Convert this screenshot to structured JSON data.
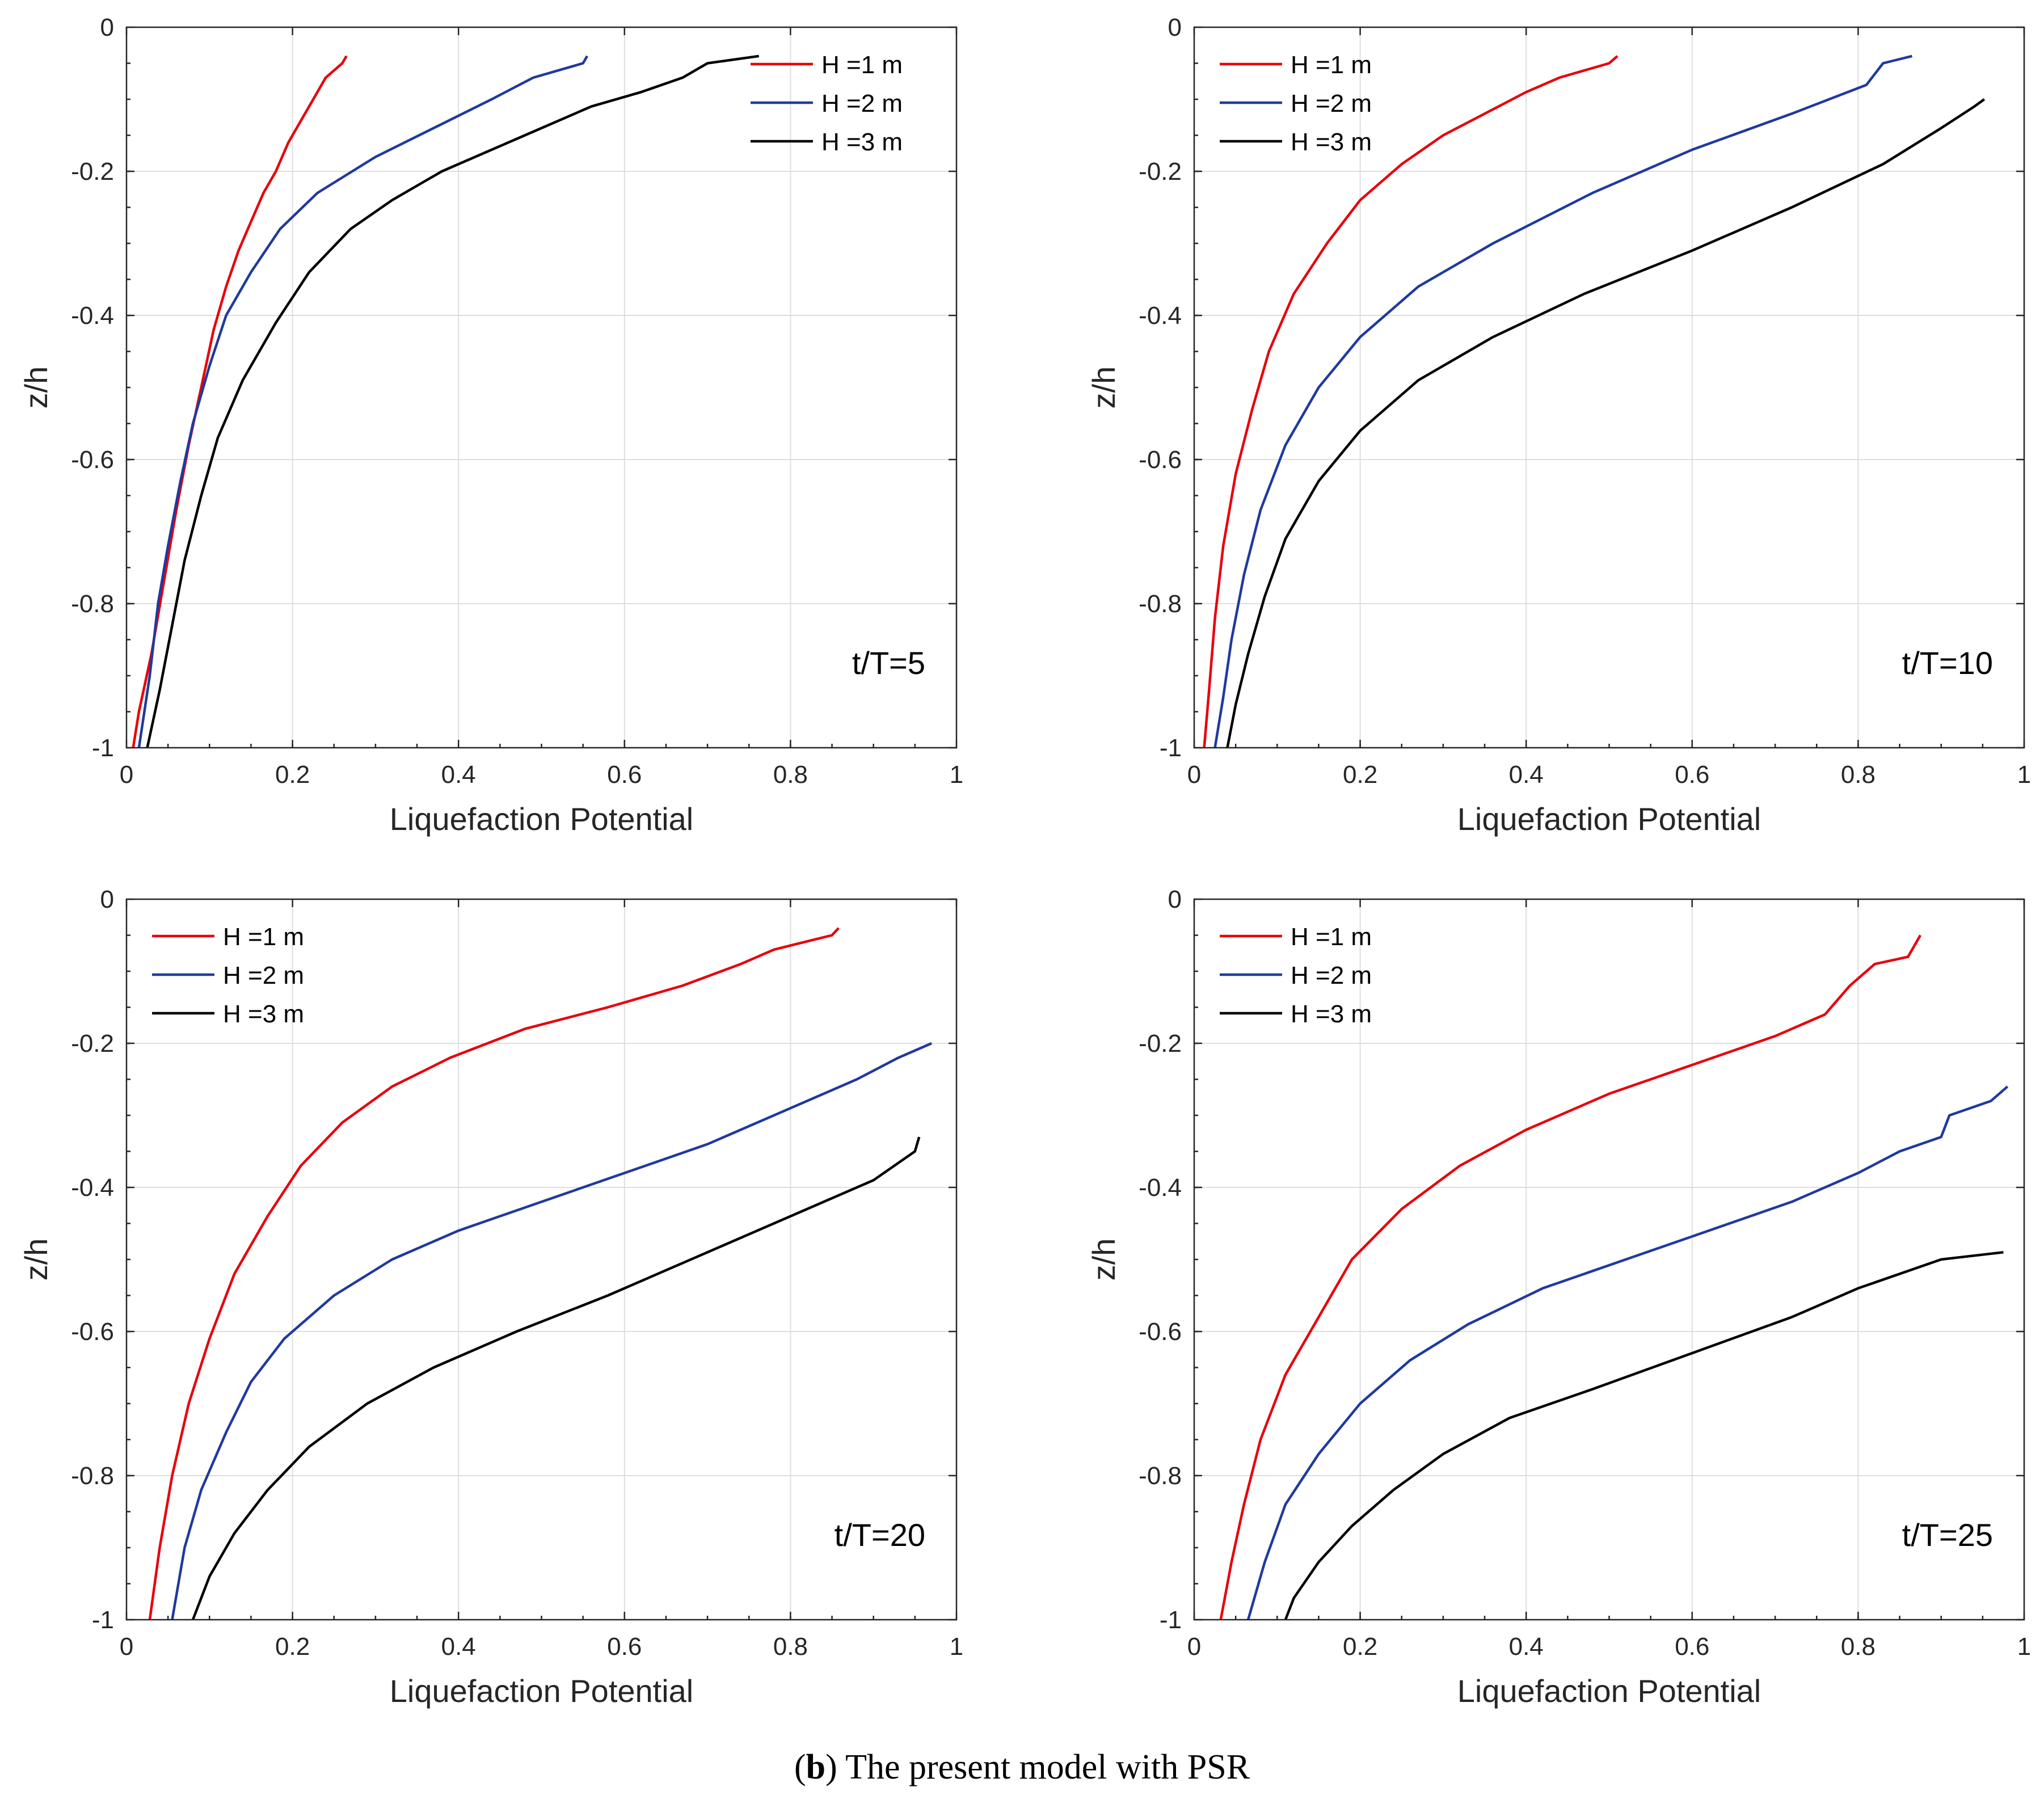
{
  "chart_data": [
    {
      "type": "line",
      "xlabel": "Liquefaction Potential",
      "ylabel": "z/h",
      "xlim": [
        0,
        1
      ],
      "ylim": [
        -1,
        0
      ],
      "xticks": [
        "0",
        "0.2",
        "0.4",
        "0.6",
        "0.8",
        "1"
      ],
      "yticks": [
        "0",
        "-0.2",
        "-0.4",
        "-0.6",
        "-0.8",
        "-1"
      ],
      "grid": true,
      "legend_position": "top-right",
      "annotation": "t/T=5",
      "series": [
        {
          "name": "H =1 m",
          "color": "#e8000b",
          "points": [
            [
              0.265,
              -0.04
            ],
            [
              0.26,
              -0.05
            ],
            [
              0.24,
              -0.07
            ],
            [
              0.225,
              -0.1
            ],
            [
              0.21,
              -0.13
            ],
            [
              0.195,
              -0.16
            ],
            [
              0.18,
              -0.2
            ],
            [
              0.165,
              -0.23
            ],
            [
              0.15,
              -0.27
            ],
            [
              0.135,
              -0.31
            ],
            [
              0.12,
              -0.36
            ],
            [
              0.105,
              -0.42
            ],
            [
              0.09,
              -0.5
            ],
            [
              0.075,
              -0.58
            ],
            [
              0.06,
              -0.67
            ],
            [
              0.045,
              -0.77
            ],
            [
              0.03,
              -0.87
            ],
            [
              0.015,
              -0.95
            ],
            [
              0.008,
              -1.0
            ]
          ]
        },
        {
          "name": "H =2 m",
          "color": "#1f3a9e",
          "points": [
            [
              0.555,
              -0.04
            ],
            [
              0.55,
              -0.05
            ],
            [
              0.49,
              -0.07
            ],
            [
              0.44,
              -0.1
            ],
            [
              0.37,
              -0.14
            ],
            [
              0.3,
              -0.18
            ],
            [
              0.23,
              -0.23
            ],
            [
              0.185,
              -0.28
            ],
            [
              0.15,
              -0.34
            ],
            [
              0.12,
              -0.4
            ],
            [
              0.1,
              -0.47
            ],
            [
              0.08,
              -0.55
            ],
            [
              0.065,
              -0.63
            ],
            [
              0.05,
              -0.72
            ],
            [
              0.038,
              -0.8
            ],
            [
              0.028,
              -0.9
            ],
            [
              0.015,
              -1.0
            ]
          ]
        },
        {
          "name": "H =3 m",
          "color": "#000000",
          "points": [
            [
              0.762,
              -0.04
            ],
            [
              0.7,
              -0.05
            ],
            [
              0.67,
              -0.07
            ],
            [
              0.62,
              -0.09
            ],
            [
              0.56,
              -0.11
            ],
            [
              0.48,
              -0.15
            ],
            [
              0.38,
              -0.2
            ],
            [
              0.32,
              -0.24
            ],
            [
              0.27,
              -0.28
            ],
            [
              0.22,
              -0.34
            ],
            [
              0.18,
              -0.41
            ],
            [
              0.14,
              -0.49
            ],
            [
              0.11,
              -0.57
            ],
            [
              0.09,
              -0.65
            ],
            [
              0.07,
              -0.74
            ],
            [
              0.055,
              -0.83
            ],
            [
              0.04,
              -0.92
            ],
            [
              0.025,
              -1.0
            ]
          ]
        }
      ]
    },
    {
      "type": "line",
      "xlabel": "Liquefaction Potential",
      "ylabel": "z/h",
      "xlim": [
        0,
        1
      ],
      "ylim": [
        -1,
        0
      ],
      "xticks": [
        "0",
        "0.2",
        "0.4",
        "0.6",
        "0.8",
        "1"
      ],
      "yticks": [
        "0",
        "-0.2",
        "-0.4",
        "-0.6",
        "-0.8",
        "-1"
      ],
      "grid": true,
      "legend_position": "top-left",
      "annotation": "t/T=10",
      "series": [
        {
          "name": "H =1 m",
          "color": "#e8000b",
          "points": [
            [
              0.51,
              -0.04
            ],
            [
              0.5,
              -0.05
            ],
            [
              0.44,
              -0.07
            ],
            [
              0.4,
              -0.09
            ],
            [
              0.35,
              -0.12
            ],
            [
              0.3,
              -0.15
            ],
            [
              0.25,
              -0.19
            ],
            [
              0.2,
              -0.24
            ],
            [
              0.16,
              -0.3
            ],
            [
              0.12,
              -0.37
            ],
            [
              0.09,
              -0.45
            ],
            [
              0.07,
              -0.53
            ],
            [
              0.05,
              -0.62
            ],
            [
              0.035,
              -0.72
            ],
            [
              0.025,
              -0.82
            ],
            [
              0.018,
              -0.92
            ],
            [
              0.012,
              -1.0
            ]
          ]
        },
        {
          "name": "H =2 m",
          "color": "#1f3a9e",
          "points": [
            [
              0.865,
              -0.04
            ],
            [
              0.83,
              -0.05
            ],
            [
              0.81,
              -0.08
            ],
            [
              0.72,
              -0.12
            ],
            [
              0.6,
              -0.17
            ],
            [
              0.48,
              -0.23
            ],
            [
              0.36,
              -0.3
            ],
            [
              0.27,
              -0.36
            ],
            [
              0.2,
              -0.43
            ],
            [
              0.15,
              -0.5
            ],
            [
              0.11,
              -0.58
            ],
            [
              0.08,
              -0.67
            ],
            [
              0.06,
              -0.76
            ],
            [
              0.045,
              -0.85
            ],
            [
              0.035,
              -0.93
            ],
            [
              0.025,
              -1.0
            ]
          ]
        },
        {
          "name": "H =3 m",
          "color": "#000000",
          "points": [
            [
              0.952,
              -0.1
            ],
            [
              0.94,
              -0.11
            ],
            [
              0.9,
              -0.14
            ],
            [
              0.83,
              -0.19
            ],
            [
              0.72,
              -0.25
            ],
            [
              0.6,
              -0.31
            ],
            [
              0.47,
              -0.37
            ],
            [
              0.36,
              -0.43
            ],
            [
              0.27,
              -0.49
            ],
            [
              0.2,
              -0.56
            ],
            [
              0.15,
              -0.63
            ],
            [
              0.11,
              -0.71
            ],
            [
              0.085,
              -0.79
            ],
            [
              0.065,
              -0.87
            ],
            [
              0.05,
              -0.94
            ],
            [
              0.04,
              -1.0
            ]
          ]
        }
      ]
    },
    {
      "type": "line",
      "xlabel": "Liquefaction Potential",
      "ylabel": "z/h",
      "xlim": [
        0,
        1
      ],
      "ylim": [
        -1,
        0
      ],
      "xticks": [
        "0",
        "0.2",
        "0.4",
        "0.6",
        "0.8",
        "1"
      ],
      "yticks": [
        "0",
        "-0.2",
        "-0.4",
        "-0.6",
        "-0.8",
        "-1"
      ],
      "grid": true,
      "legend_position": "top-left",
      "annotation": "t/T=20",
      "series": [
        {
          "name": "H =1 m",
          "color": "#e8000b",
          "points": [
            [
              0.858,
              -0.04
            ],
            [
              0.85,
              -0.05
            ],
            [
              0.78,
              -0.07
            ],
            [
              0.74,
              -0.09
            ],
            [
              0.67,
              -0.12
            ],
            [
              0.58,
              -0.15
            ],
            [
              0.48,
              -0.18
            ],
            [
              0.39,
              -0.22
            ],
            [
              0.32,
              -0.26
            ],
            [
              0.26,
              -0.31
            ],
            [
              0.21,
              -0.37
            ],
            [
              0.17,
              -0.44
            ],
            [
              0.13,
              -0.52
            ],
            [
              0.1,
              -0.61
            ],
            [
              0.075,
              -0.7
            ],
            [
              0.055,
              -0.8
            ],
            [
              0.04,
              -0.9
            ],
            [
              0.028,
              -1.0
            ]
          ]
        },
        {
          "name": "H =2 m",
          "color": "#1f3a9e",
          "points": [
            [
              0.97,
              -0.2
            ],
            [
              0.93,
              -0.22
            ],
            [
              0.88,
              -0.25
            ],
            [
              0.8,
              -0.29
            ],
            [
              0.7,
              -0.34
            ],
            [
              0.6,
              -0.38
            ],
            [
              0.5,
              -0.42
            ],
            [
              0.4,
              -0.46
            ],
            [
              0.32,
              -0.5
            ],
            [
              0.25,
              -0.55
            ],
            [
              0.19,
              -0.61
            ],
            [
              0.15,
              -0.67
            ],
            [
              0.12,
              -0.74
            ],
            [
              0.09,
              -0.82
            ],
            [
              0.07,
              -0.9
            ],
            [
              0.055,
              -1.0
            ]
          ]
        },
        {
          "name": "H =3 m",
          "color": "#000000",
          "points": [
            [
              0.955,
              -0.33
            ],
            [
              0.95,
              -0.35
            ],
            [
              0.9,
              -0.39
            ],
            [
              0.8,
              -0.44
            ],
            [
              0.7,
              -0.49
            ],
            [
              0.58,
              -0.55
            ],
            [
              0.47,
              -0.6
            ],
            [
              0.37,
              -0.65
            ],
            [
              0.29,
              -0.7
            ],
            [
              0.22,
              -0.76
            ],
            [
              0.17,
              -0.82
            ],
            [
              0.13,
              -0.88
            ],
            [
              0.1,
              -0.94
            ],
            [
              0.08,
              -1.0
            ]
          ]
        }
      ]
    },
    {
      "type": "line",
      "xlabel": "Liquefaction Potential",
      "ylabel": "z/h",
      "xlim": [
        0,
        1
      ],
      "ylim": [
        -1,
        0
      ],
      "xticks": [
        "0",
        "0.2",
        "0.4",
        "0.6",
        "0.8",
        "1"
      ],
      "yticks": [
        "0",
        "-0.2",
        "-0.4",
        "-0.6",
        "-0.8",
        "-1"
      ],
      "grid": true,
      "legend_position": "top-left",
      "annotation": "t/T=25",
      "series": [
        {
          "name": "H =1 m",
          "color": "#e8000b",
          "points": [
            [
              0.875,
              -0.05
            ],
            [
              0.86,
              -0.08
            ],
            [
              0.82,
              -0.09
            ],
            [
              0.79,
              -0.12
            ],
            [
              0.76,
              -0.16
            ],
            [
              0.7,
              -0.19
            ],
            [
              0.6,
              -0.23
            ],
            [
              0.5,
              -0.27
            ],
            [
              0.4,
              -0.32
            ],
            [
              0.32,
              -0.37
            ],
            [
              0.25,
              -0.43
            ],
            [
              0.19,
              -0.5
            ],
            [
              0.15,
              -0.58
            ],
            [
              0.11,
              -0.66
            ],
            [
              0.08,
              -0.75
            ],
            [
              0.06,
              -0.84
            ],
            [
              0.045,
              -0.92
            ],
            [
              0.032,
              -1.0
            ]
          ]
        },
        {
          "name": "H =2 m",
          "color": "#1f3a9e",
          "points": [
            [
              0.98,
              -0.26
            ],
            [
              0.96,
              -0.28
            ],
            [
              0.91,
              -0.3
            ],
            [
              0.9,
              -0.33
            ],
            [
              0.85,
              -0.35
            ],
            [
              0.8,
              -0.38
            ],
            [
              0.72,
              -0.42
            ],
            [
              0.62,
              -0.46
            ],
            [
              0.52,
              -0.5
            ],
            [
              0.42,
              -0.54
            ],
            [
              0.33,
              -0.59
            ],
            [
              0.26,
              -0.64
            ],
            [
              0.2,
              -0.7
            ],
            [
              0.15,
              -0.77
            ],
            [
              0.11,
              -0.84
            ],
            [
              0.085,
              -0.92
            ],
            [
              0.065,
              -1.0
            ]
          ]
        },
        {
          "name": "H =3 m",
          "color": "#000000",
          "points": [
            [
              0.975,
              -0.49
            ],
            [
              0.9,
              -0.5
            ],
            [
              0.8,
              -0.54
            ],
            [
              0.72,
              -0.58
            ],
            [
              0.6,
              -0.63
            ],
            [
              0.48,
              -0.68
            ],
            [
              0.38,
              -0.72
            ],
            [
              0.3,
              -0.77
            ],
            [
              0.24,
              -0.82
            ],
            [
              0.19,
              -0.87
            ],
            [
              0.15,
              -0.92
            ],
            [
              0.12,
              -0.97
            ],
            [
              0.11,
              -1.0
            ]
          ]
        }
      ]
    }
  ],
  "caption": {
    "label": "b",
    "open_paren": "(",
    "close_paren": ")",
    "text": " The present model with PSR"
  }
}
